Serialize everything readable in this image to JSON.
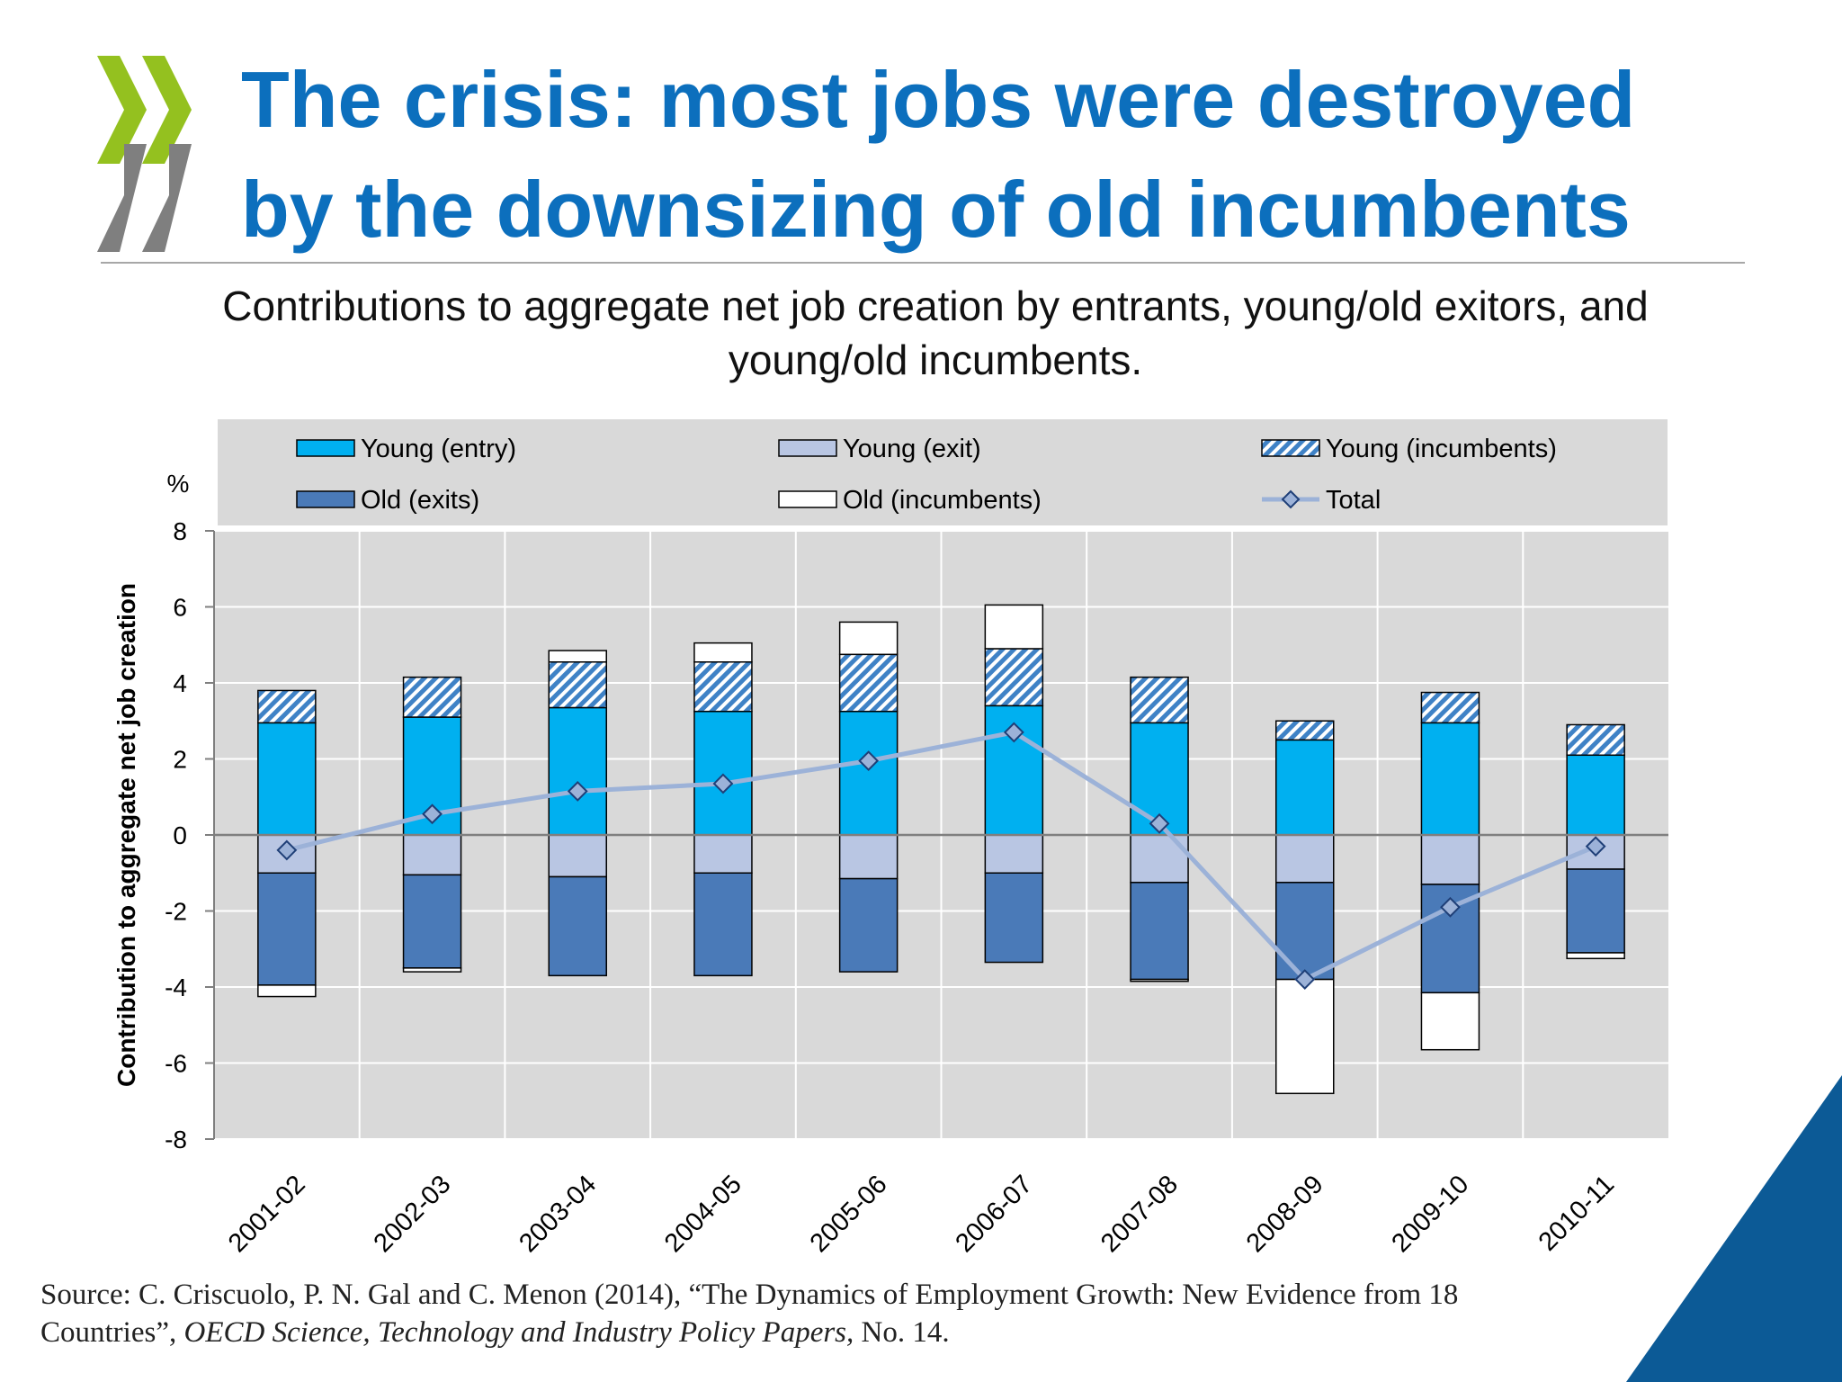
{
  "slide": {
    "title_lines": [
      "The crisis: most jobs were destroyed",
      "by the downsizing of old incumbents"
    ],
    "subtitle_lines": [
      "Contributions to aggregate net job creation by entrants, young/old exitors, and",
      "young/old incumbents."
    ],
    "source": {
      "line1": "Source: C. Criscuolo, P. N. Gal and C. Menon (2014), “The Dynamics of Employment Growth: New Evidence from 18",
      "line2_prefix": "Countries”, ",
      "line2_italic": "OECD Science, Technology and Industry Policy  Papers,",
      "line2_suffix": " No. 14."
    }
  },
  "colors": {
    "title": "#0c6fbd",
    "young_entry": "#00b0f0",
    "young_exit": "#b9c6e3",
    "young_incumbents_hatch": "#3f82c6",
    "old_exits": "#4a7ab8",
    "old_incumbents": "#ffffff",
    "total_line": "#9cb2d8",
    "plot_bg": "#d9d9d9",
    "corner_triangle": "#0c5a96"
  },
  "chart_data": {
    "type": "bar",
    "stacked": true,
    "categories": [
      "2001-02",
      "2002-03",
      "2003-04",
      "2004-05",
      "2005-06",
      "2006-07",
      "2007-08",
      "2008-09",
      "2009-10",
      "2010-11"
    ],
    "series": [
      {
        "name": "Young (entry)",
        "values": [
          2.95,
          3.1,
          3.35,
          3.25,
          3.25,
          3.4,
          2.95,
          2.5,
          2.95,
          2.1
        ]
      },
      {
        "name": "Young (exit)",
        "values": [
          -1.0,
          -1.05,
          -1.1,
          -1.0,
          -1.15,
          -1.0,
          -1.25,
          -1.25,
          -1.3,
          -0.9
        ]
      },
      {
        "name": "Young (incumbents)",
        "values": [
          0.85,
          1.05,
          1.2,
          1.3,
          1.5,
          1.5,
          1.2,
          0.5,
          0.8,
          0.8
        ]
      },
      {
        "name": "Old (exits)",
        "values": [
          -2.95,
          -2.45,
          -2.6,
          -2.7,
          -2.45,
          -2.35,
          -2.55,
          -2.55,
          -2.85,
          -2.2
        ]
      },
      {
        "name": "Old (incumbents)",
        "values": [
          -0.3,
          -0.1,
          0.3,
          0.5,
          0.85,
          1.15,
          -0.05,
          -3.0,
          -1.5,
          -0.15
        ]
      },
      {
        "name": "Total",
        "type": "line",
        "values": [
          -0.4,
          0.55,
          1.15,
          1.35,
          1.95,
          2.7,
          0.3,
          -3.8,
          -1.9,
          -0.3
        ]
      }
    ],
    "ylabel": "Contribution to aggregate net job creation",
    "yunit": "%",
    "ylim": [
      -8,
      8
    ],
    "yticks": [
      8,
      6,
      4,
      2,
      0,
      -2,
      -4,
      -6,
      -8
    ],
    "grid": true,
    "legend_position": "top"
  }
}
